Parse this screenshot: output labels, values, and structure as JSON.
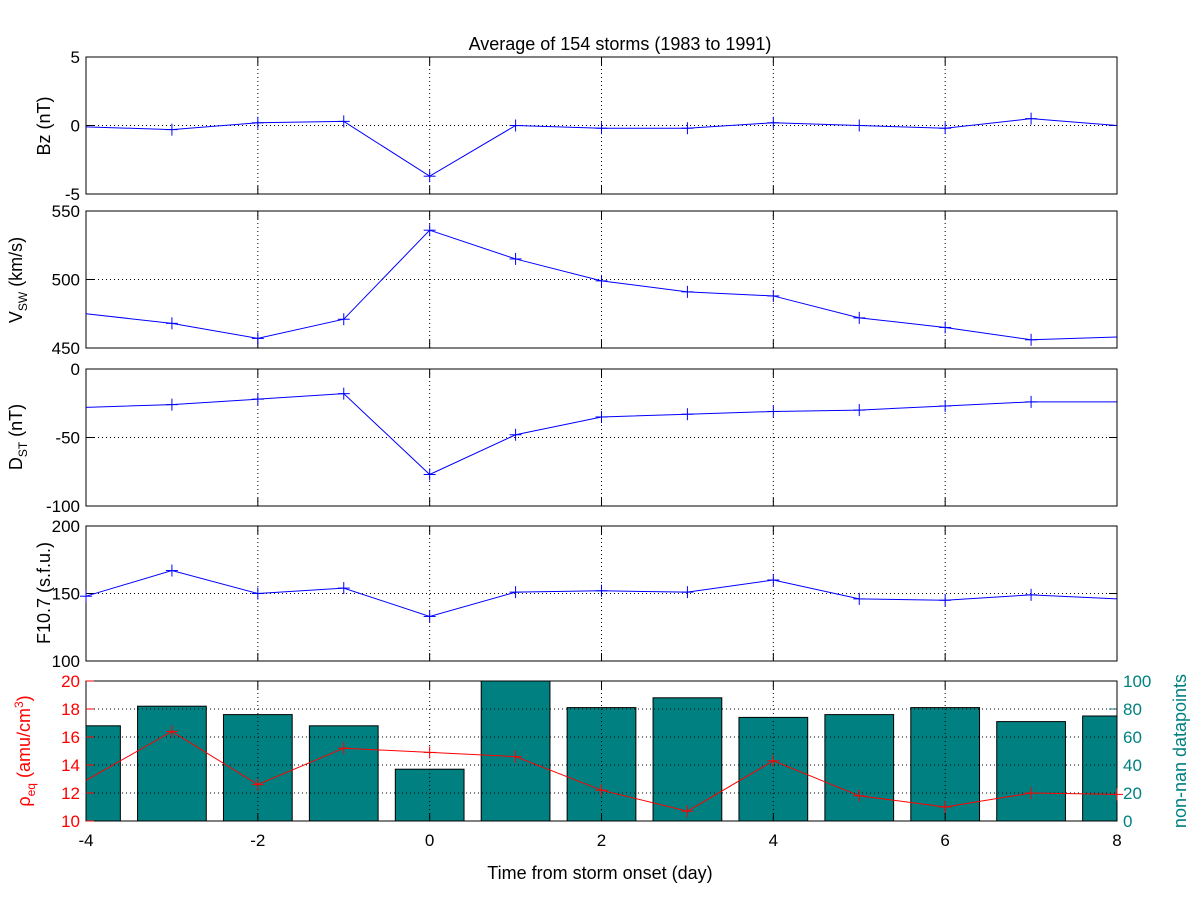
{
  "figure": {
    "title": "Average of 154 storms  (1983 to 1991)",
    "xlabel": "Time from storm onset (day)",
    "xticks": [
      -4,
      -2,
      0,
      2,
      4,
      6,
      8
    ],
    "xlim": [
      -4,
      8
    ]
  },
  "colors": {
    "series": "#0000ff",
    "density": "#ff0000",
    "bars": "#008080",
    "bar_edge": "#000000",
    "axis": "#000000"
  },
  "chart_data": [
    {
      "type": "line",
      "ylabel": "Bz (nT)",
      "ylim": [
        -5,
        5
      ],
      "yticks": [
        -5,
        0,
        5
      ],
      "grid": true,
      "x": [
        -4,
        -3,
        -2,
        -1,
        0,
        1,
        2,
        3,
        4,
        5,
        6,
        7,
        8
      ],
      "values": [
        -0.1,
        -0.3,
        0.2,
        0.3,
        -3.7,
        0.0,
        -0.2,
        -0.2,
        0.2,
        0.0,
        -0.2,
        0.5,
        0.0
      ],
      "markers_at": [
        -3,
        -2,
        -1,
        0,
        1,
        2,
        3,
        4,
        5,
        6,
        7
      ]
    },
    {
      "type": "line",
      "ylabel_main": "V",
      "ylabel_sub": "SW",
      "ylabel_suffix": " (km/s)",
      "ylim": [
        450,
        550
      ],
      "yticks": [
        450,
        500,
        550
      ],
      "grid": true,
      "x": [
        -4,
        -3,
        -2,
        -1,
        0,
        1,
        2,
        3,
        4,
        5,
        6,
        7,
        8
      ],
      "values": [
        475,
        468,
        457,
        471,
        536,
        515,
        499,
        491,
        488,
        472,
        465,
        456,
        458
      ],
      "markers_at": [
        -3,
        -2,
        -1,
        0,
        1,
        2,
        3,
        4,
        5,
        6,
        7
      ]
    },
    {
      "type": "line",
      "ylabel_main": "D",
      "ylabel_sub": "ST",
      "ylabel_suffix": " (nT)",
      "ylim": [
        -100,
        0
      ],
      "yticks": [
        -100,
        -50,
        0
      ],
      "grid": true,
      "x": [
        -4,
        -3,
        -2,
        -1,
        0,
        1,
        2,
        3,
        4,
        5,
        6,
        7,
        8
      ],
      "values": [
        -28,
        -26,
        -22,
        -18,
        -77,
        -48,
        -35,
        -33,
        -31,
        -30,
        -27,
        -24,
        -24
      ],
      "markers_at": [
        -3,
        -2,
        -1,
        0,
        1,
        2,
        3,
        4,
        5,
        6,
        7
      ]
    },
    {
      "type": "line",
      "ylabel": "F10.7 (s.f.u.)",
      "ylim": [
        100,
        200
      ],
      "yticks": [
        100,
        150,
        200
      ],
      "grid": true,
      "x": [
        -4,
        -3,
        -2,
        -1,
        0,
        1,
        2,
        3,
        4,
        5,
        6,
        7,
        8
      ],
      "values": [
        148,
        167,
        150,
        154,
        133,
        151,
        152,
        151,
        160,
        146,
        145,
        149,
        146
      ],
      "markers_at": [
        -4,
        -3,
        -2,
        -1,
        0,
        1,
        2,
        3,
        4,
        5,
        6,
        7
      ]
    },
    {
      "type": "bar",
      "right_axis_label": "non-nan datapoints",
      "right_ylim": [
        0,
        100
      ],
      "right_yticks": [
        0,
        20,
        40,
        60,
        80,
        100
      ],
      "x": [
        -4,
        -3,
        -2,
        -1,
        0,
        1,
        2,
        3,
        4,
        5,
        6,
        7,
        8
      ],
      "bar_width": 0.8,
      "values": [
        68,
        82,
        76,
        68,
        37,
        100,
        81,
        88,
        74,
        76,
        81,
        71,
        75
      ]
    },
    {
      "type": "line",
      "ylabel_main": "ρ",
      "ylabel_sub": "eq",
      "ylabel_suffix": " (amu/cm",
      "ylabel_sup": "3",
      "ylabel_close": ")",
      "ylim": [
        10,
        20
      ],
      "yticks": [
        10,
        12,
        14,
        16,
        18,
        20
      ],
      "grid": true,
      "x": [
        -4,
        -3,
        -2,
        -1,
        0,
        1,
        2,
        3,
        4,
        5,
        6,
        7,
        8
      ],
      "values": [
        12.9,
        16.4,
        12.6,
        15.2,
        14.9,
        14.6,
        12.2,
        10.7,
        14.3,
        11.8,
        11.0,
        12.0,
        11.9
      ],
      "markers_at": [
        -3,
        -2,
        -1,
        0,
        1,
        2,
        3,
        4,
        5,
        6,
        7,
        8
      ]
    }
  ]
}
